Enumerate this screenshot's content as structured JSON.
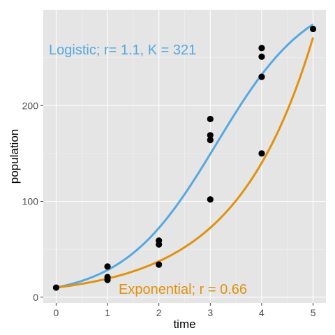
{
  "chart_data": {
    "type": "scatter",
    "xlabel": "time",
    "ylabel": "population",
    "xlim": [
      -0.25,
      5.25
    ],
    "ylim": [
      -6,
      300
    ],
    "x_ticks": [
      0,
      1,
      2,
      3,
      4,
      5
    ],
    "y_ticks": [
      0,
      100,
      200
    ],
    "grid": true,
    "points": [
      {
        "x": 0,
        "y": 10
      },
      {
        "x": 1,
        "y": 32
      },
      {
        "x": 1,
        "y": 21
      },
      {
        "x": 1,
        "y": 18
      },
      {
        "x": 2,
        "y": 59
      },
      {
        "x": 2,
        "y": 55
      },
      {
        "x": 2,
        "y": 34
      },
      {
        "x": 3,
        "y": 186
      },
      {
        "x": 3,
        "y": 169
      },
      {
        "x": 3,
        "y": 164
      },
      {
        "x": 3,
        "y": 102
      },
      {
        "x": 4,
        "y": 260
      },
      {
        "x": 4,
        "y": 251
      },
      {
        "x": 4,
        "y": 230
      },
      {
        "x": 4,
        "y": 150
      },
      {
        "x": 5,
        "y": 280
      }
    ],
    "series": [
      {
        "label": "Logistic; r= 1.1, K = 321",
        "model": "logistic",
        "r": 1.1,
        "K": 321,
        "N0": 10,
        "color": "#56A8E0",
        "label_position": "top-left"
      },
      {
        "label": "Exponential; r = 0.66",
        "model": "exponential",
        "r": 0.66,
        "N0": 10,
        "color": "#E0920E",
        "label_position": "bottom-center"
      }
    ]
  },
  "colors": {
    "panel_background": "#E5E5E5",
    "grid_major": "#FFFFFF",
    "points": "#000000"
  }
}
